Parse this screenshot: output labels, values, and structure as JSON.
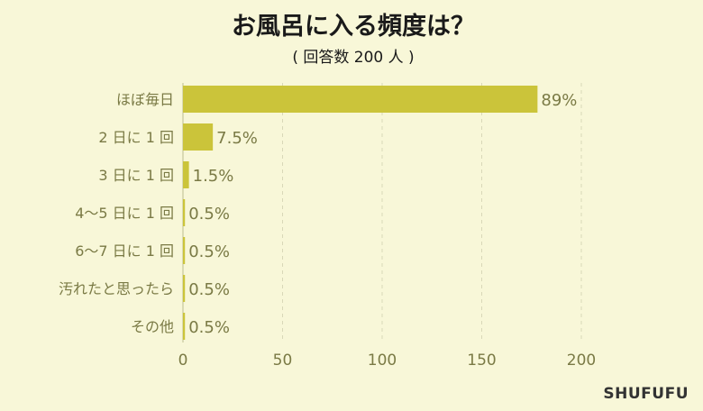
{
  "brand": "SHUFUFU",
  "colors": {
    "bar": "#cbc43a",
    "background": "#f8f7d8"
  },
  "chart_data": {
    "type": "bar",
    "orientation": "horizontal",
    "title": "お風呂に入る頻度は？",
    "subtitle": "( 回答数 200 人 )",
    "categories": [
      "ほぼ毎日",
      "2 日に 1 回",
      "3 日に 1 回",
      "4〜5 日に 1 回",
      "6〜7 日に 1 回",
      "汚れたと思ったら",
      "その他"
    ],
    "values": [
      178,
      15,
      3,
      1,
      1,
      1,
      1
    ],
    "value_labels": [
      "89%",
      "7.5%",
      "1.5%",
      "0.5%",
      "0.5%",
      "0.5%",
      "0.5%"
    ],
    "xlim": [
      0,
      200
    ],
    "xticks": [
      0,
      50,
      100,
      150,
      200
    ],
    "grid": true,
    "legend": "none"
  }
}
